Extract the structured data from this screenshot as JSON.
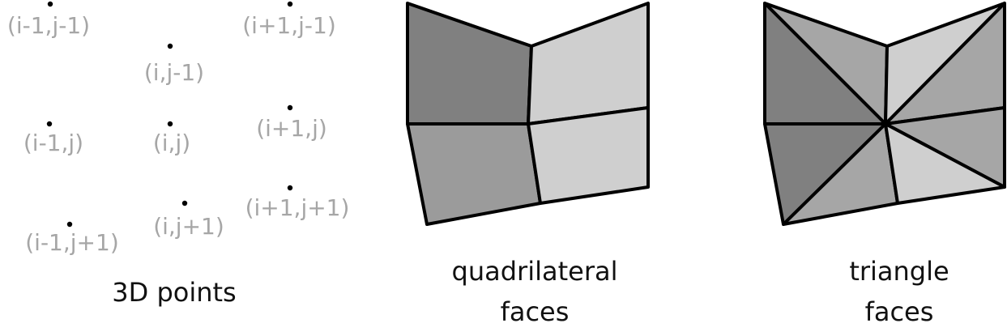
{
  "points_panel": {
    "caption": "3D points",
    "dot_color": "#000000",
    "label_color": "#a6a6a6",
    "points": [
      {
        "id": "p-im1-jm1",
        "label": "(i-1,j-1)"
      },
      {
        "id": "p-i-jm1",
        "label": "(i,j-1)"
      },
      {
        "id": "p-ip1-jm1",
        "label": "(i+1,j-1)"
      },
      {
        "id": "p-im1-j",
        "label": "(i-1,j)"
      },
      {
        "id": "p-i-j",
        "label": "(i,j)"
      },
      {
        "id": "p-ip1-j",
        "label": "(i+1,j)"
      },
      {
        "id": "p-im1-jp1",
        "label": "(i-1,j+1)"
      },
      {
        "id": "p-i-jp1",
        "label": "(i,j+1)"
      },
      {
        "id": "p-ip1-jp1",
        "label": "(i+1,j+1)"
      }
    ]
  },
  "quad_panel": {
    "caption_line1": "quadrilateral",
    "caption_line2": "faces",
    "colors": {
      "dark": "#808080",
      "medium": "#9b9b9b",
      "light": "#cfcfcf"
    }
  },
  "tri_panel": {
    "caption_line1": "triangle",
    "caption_line2": "faces",
    "colors": {
      "dark": "#808080",
      "medium": "#a6a6a6",
      "light": "#cfcfcf"
    }
  }
}
